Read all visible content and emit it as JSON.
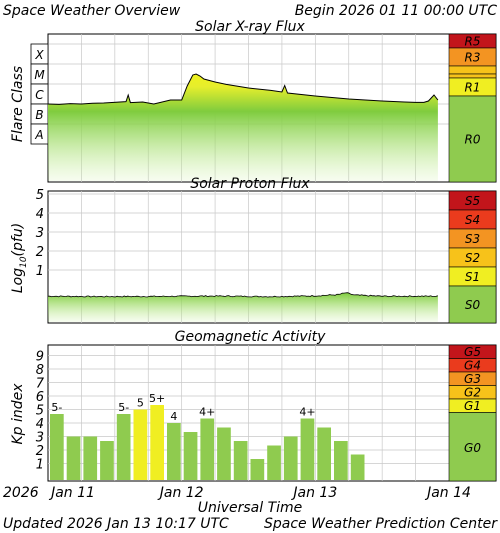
{
  "header": {
    "title": "Space Weather Overview",
    "begin": "Begin 2026 01 11 00:00 UTC"
  },
  "footer": {
    "updated": "Updated 2026 Jan 13 10:17 UTC",
    "credit": "Space Weather Prediction Center"
  },
  "colors": {
    "grid": "#c8c8c8",
    "trace": "#000000",
    "fill_low": "#c8ef9c",
    "fill_mid": "#7fcc3e",
    "fill_high": "#eff21e",
    "bar_normal": "#8fcb4f",
    "bar_storm": "#f0ee22",
    "scale_none": "#8fcb4f",
    "scale_1": "#f0ee22",
    "scale_2": "#f7c21a",
    "scale_3": "#f39422",
    "scale_4": "#ea3b1d",
    "scale_5": "#c2151b"
  },
  "chart_data": [
    {
      "type": "area",
      "title": "Solar X-ray Flux",
      "ylabel": "Flare Class",
      "y_scale": "log",
      "class_ticks": [
        "X",
        "M",
        "C",
        "B",
        "A"
      ],
      "xlim_hours": [
        0,
        72
      ],
      "x_hours": [
        0,
        2,
        4,
        6,
        8,
        10,
        14,
        14.4,
        14.8,
        17,
        19,
        22,
        24,
        25,
        26,
        26.6,
        27.3,
        28,
        30,
        32,
        36,
        40,
        42,
        42.5,
        43,
        48,
        54,
        60,
        64,
        66,
        67.5,
        68.3,
        69.3,
        70
      ],
      "log_flux": [
        -6.5,
        -6.52,
        -6.48,
        -6.5,
        -6.46,
        -6.45,
        -6.38,
        -6.05,
        -6.43,
        -6.4,
        -6.5,
        -6.3,
        -6.3,
        -5.6,
        -5.05,
        -5.0,
        -5.1,
        -5.25,
        -5.4,
        -5.52,
        -5.7,
        -5.82,
        -5.9,
        -5.58,
        -5.95,
        -6.1,
        -6.25,
        -6.35,
        -6.4,
        -6.42,
        -6.42,
        -6.35,
        -6.05,
        -6.3
      ],
      "scale_label": "R",
      "scale_boxes": [
        "R5",
        "R3",
        "R1",
        "R0"
      ]
    },
    {
      "type": "area",
      "title": "Solar Proton Flux",
      "ylabel": "Log10(pfu)",
      "ylabel_parts": [
        "Log",
        "10",
        "(pfu)"
      ],
      "y_ticks": [
        "5",
        "4",
        "3",
        "2",
        "1"
      ],
      "xlim_hours": [
        0,
        72
      ],
      "x_hours": [
        0,
        10,
        20,
        30,
        40,
        48,
        52,
        53.5,
        55,
        60,
        70
      ],
      "log_pfu": [
        -0.38,
        -0.4,
        -0.39,
        -0.37,
        -0.4,
        -0.36,
        -0.3,
        -0.2,
        -0.32,
        -0.38,
        -0.38
      ],
      "scale_boxes": [
        "S5",
        "S4",
        "S3",
        "S2",
        "S1",
        "S0"
      ]
    },
    {
      "type": "bar",
      "title": "Geomagnetic Activity",
      "ylabel": "Kp index",
      "y_ticks": [
        "9",
        "8",
        "7",
        "6",
        "5",
        "4",
        "3",
        "2",
        "1"
      ],
      "kp": [
        4.67,
        3.0,
        3.0,
        2.67,
        4.67,
        5.0,
        5.33,
        4.0,
        3.33,
        4.33,
        3.67,
        2.67,
        1.33,
        2.33,
        3.0,
        4.33,
        3.67,
        2.67,
        1.67
      ],
      "kp_labels": [
        "5-",
        "",
        "",
        "",
        "5-",
        "5",
        "5+",
        "4",
        "",
        "4+",
        "",
        "",
        "",
        "",
        "",
        "4+",
        "",
        "",
        ""
      ],
      "storm_threshold": 5,
      "scale_boxes": [
        "G5",
        "G4",
        "G3",
        "G2",
        "G1",
        "G0"
      ]
    }
  ],
  "x_axis": {
    "year": "2026",
    "ticks": [
      "Jan 11",
      "Jan 12",
      "Jan 13",
      "Jan 14"
    ],
    "label": "Universal Time"
  }
}
